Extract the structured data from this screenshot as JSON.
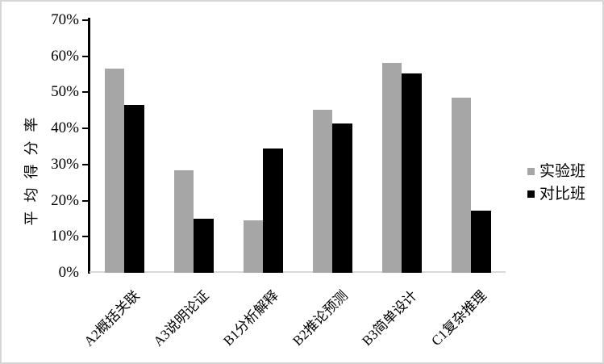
{
  "chart_data": {
    "type": "bar",
    "title": "",
    "categories": [
      "A2概括关联",
      "A3说明论证",
      "B1分析解释",
      "B2推论预测",
      "B3简单设计",
      "C1复杂推理"
    ],
    "series": [
      {
        "name": "实验班",
        "color": "#a6a6a6",
        "values": [
          56.5,
          28.5,
          14.5,
          45.2,
          58.1,
          48.5
        ]
      },
      {
        "name": "对比班",
        "color": "#000000",
        "values": [
          46.5,
          15.0,
          34.5,
          41.3,
          55.3,
          17.3
        ]
      }
    ],
    "xlabel": "",
    "ylabel": "平均得分率",
    "ylim": [
      0,
      70
    ],
    "ytick_step": 10,
    "yticks": [
      "0%",
      "10%",
      "20%",
      "30%",
      "40%",
      "50%",
      "60%",
      "70%"
    ],
    "grid": false,
    "legend_position": "right",
    "x_label_rotation_deg": -45
  },
  "colors": {
    "background": "#ffffff",
    "axis": "#000000",
    "baseline": "#d9d9d9",
    "figure_border": "#d6d6d6"
  }
}
